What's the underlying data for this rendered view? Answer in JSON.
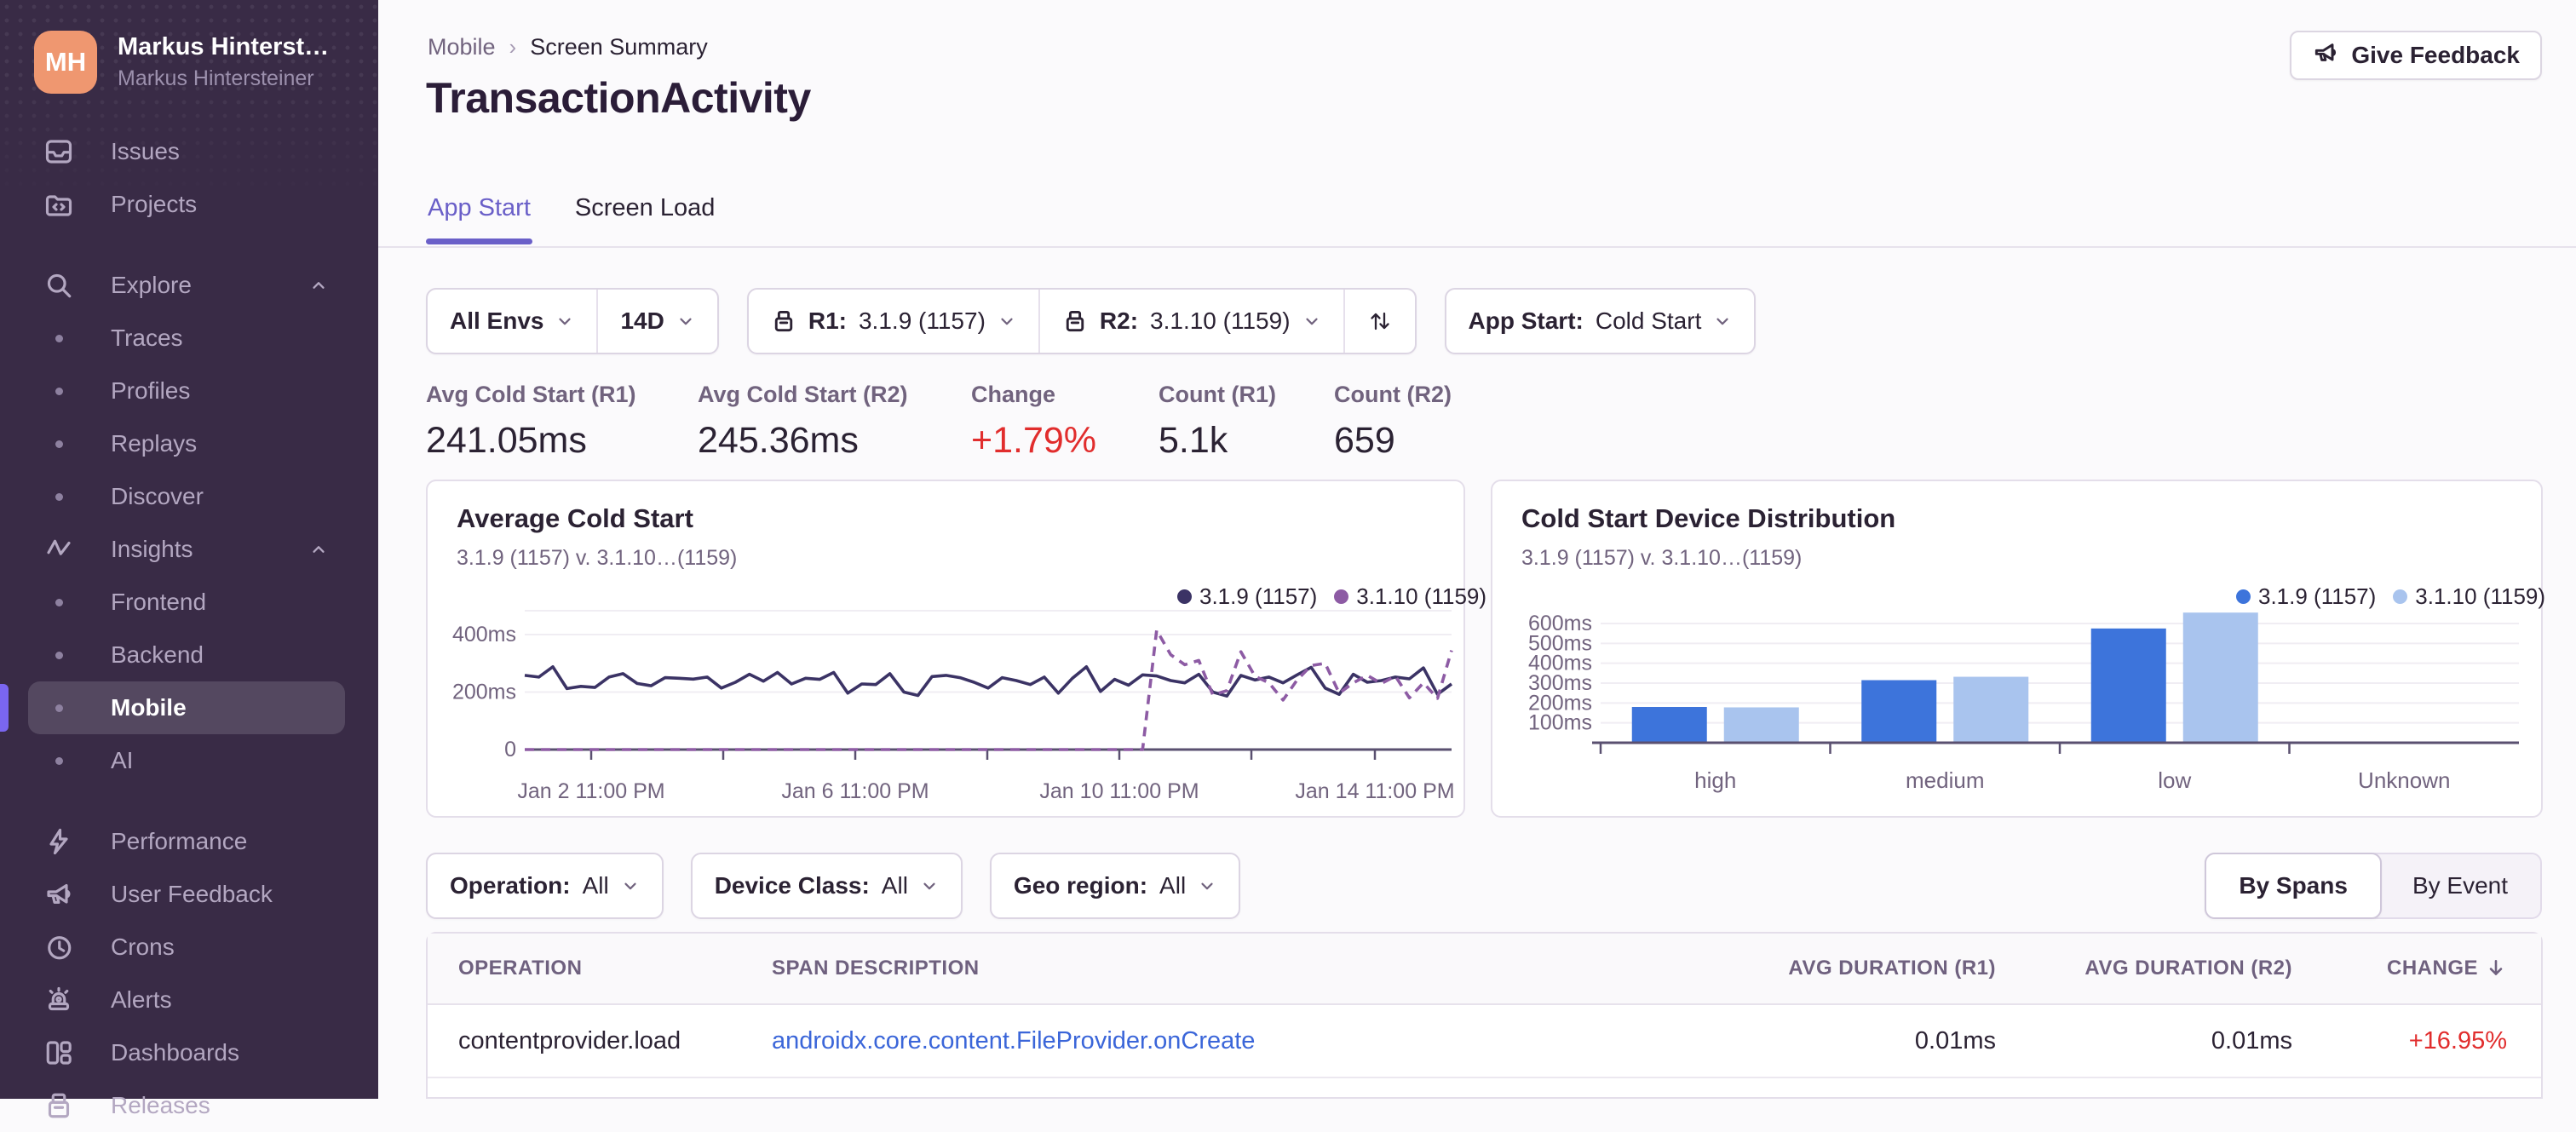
{
  "sidebar": {
    "user": {
      "initials": "MH",
      "name": "Markus Hinterst…",
      "org": "Markus Hintersteiner"
    },
    "items": [
      {
        "label": "Issues",
        "icon": "issues",
        "type": "top"
      },
      {
        "label": "Projects",
        "icon": "projects",
        "type": "top"
      },
      {
        "label": "Explore",
        "icon": "search",
        "type": "group",
        "chevron": "up",
        "gap_before": true
      },
      {
        "label": "Traces",
        "type": "sub"
      },
      {
        "label": "Profiles",
        "type": "sub"
      },
      {
        "label": "Replays",
        "type": "sub"
      },
      {
        "label": "Discover",
        "type": "sub"
      },
      {
        "label": "Insights",
        "icon": "insights",
        "type": "group",
        "chevron": "up"
      },
      {
        "label": "Frontend",
        "type": "sub"
      },
      {
        "label": "Backend",
        "type": "sub"
      },
      {
        "label": "Mobile",
        "type": "sub",
        "active": true
      },
      {
        "label": "AI",
        "type": "sub"
      },
      {
        "label": "Performance",
        "icon": "performance",
        "type": "top",
        "gap_before": true
      },
      {
        "label": "User Feedback",
        "icon": "megaphone",
        "type": "top"
      },
      {
        "label": "Crons",
        "icon": "crons",
        "type": "top"
      },
      {
        "label": "Alerts",
        "icon": "alerts",
        "type": "top"
      },
      {
        "label": "Dashboards",
        "icon": "dashboards",
        "type": "top"
      },
      {
        "label": "Releases",
        "icon": "releases",
        "type": "top"
      }
    ]
  },
  "header": {
    "breadcrumb_parent": "Mobile",
    "breadcrumb_current": "Screen Summary",
    "title": "TransactionActivity",
    "feedback_label": "Give Feedback"
  },
  "tabs": {
    "app_start": "App Start",
    "screen_load": "Screen Load"
  },
  "filters": {
    "env": "All Envs",
    "range": "14D",
    "r1_prefix": "R1:",
    "r1_value": "3.1.9 (1157)",
    "r2_prefix": "R2:",
    "r2_value": "3.1.10 (1159)",
    "app_start_prefix": "App Start:",
    "app_start_value": "Cold Start",
    "operation_prefix": "Operation:",
    "operation_value": "All",
    "device_class_prefix": "Device Class:",
    "device_class_value": "All",
    "geo_prefix": "Geo region:",
    "geo_value": "All"
  },
  "stats": [
    {
      "label": "Avg Cold Start (R1)",
      "value": "241.05ms"
    },
    {
      "label": "Avg Cold Start (R2)",
      "value": "245.36ms"
    },
    {
      "label": "Change",
      "value": "+1.79%"
    },
    {
      "label": "Count (R1)",
      "value": "5.1k"
    },
    {
      "label": "Count (R2)",
      "value": "659"
    }
  ],
  "view_toggle": {
    "by_spans": "By Spans",
    "by_event": "By Event"
  },
  "table": {
    "columns": [
      "OPERATION",
      "SPAN DESCRIPTION",
      "AVG DURATION (R1)",
      "AVG DURATION (R2)",
      "CHANGE"
    ],
    "sort_column": "CHANGE",
    "rows": [
      {
        "operation": "contentprovider.load",
        "span_description": "androidx.core.content.FileProvider.onCreate",
        "avg_r1": "0.01ms",
        "avg_r2": "0.01ms",
        "change": "+16.95%"
      }
    ]
  },
  "chart_data": [
    {
      "type": "line",
      "title": "Average Cold Start",
      "subtitle": "3.1.9 (1157) v. 3.1.10…(1159)",
      "ylabel": "ms",
      "ylim": [
        0,
        440
      ],
      "y_ticks": [
        "400ms",
        "200ms",
        "0"
      ],
      "x_ticks": [
        "Jan 2 11:00 PM",
        "Jan 6 11:00 PM",
        "Jan 10 11:00 PM",
        "Jan 14 11:00 PM"
      ],
      "legend_position": "top-right",
      "grid": "horizontal",
      "series": [
        {
          "name": "3.1.9 (1157)",
          "color": "#3B3365",
          "style": "solid",
          "values": [
            258,
            252,
            288,
            212,
            220,
            216,
            252,
            264,
            230,
            222,
            250,
            248,
            245,
            252,
            214,
            234,
            262,
            238,
            268,
            228,
            248,
            244,
            268,
            196,
            228,
            226,
            264,
            200,
            188,
            254,
            258,
            250,
            234,
            214,
            250,
            240,
            226,
            252,
            196,
            248,
            288,
            202,
            244,
            224,
            260,
            256,
            240,
            232,
            262,
            200,
            186,
            258,
            242,
            252,
            232,
            260,
            286,
            214,
            192,
            262,
            234,
            240,
            252,
            246,
            284,
            192,
            228
          ]
        },
        {
          "name": "3.1.10 (1159)",
          "color": "#8D5BA4",
          "style": "dashed",
          "values": [
            0,
            0,
            0,
            0,
            0,
            0,
            0,
            0,
            0,
            0,
            0,
            0,
            0,
            0,
            0,
            0,
            0,
            0,
            0,
            0,
            0,
            0,
            0,
            0,
            0,
            0,
            0,
            0,
            0,
            0,
            0,
            0,
            0,
            0,
            0,
            0,
            0,
            0,
            0,
            0,
            0,
            0,
            0,
            0,
            0,
            415,
            330,
            295,
            310,
            190,
            205,
            340,
            255,
            232,
            172,
            242,
            292,
            300,
            196,
            232,
            258,
            230,
            255,
            180,
            232,
            178,
            345
          ]
        }
      ]
    },
    {
      "type": "bar",
      "title": "Cold Start Device Distribution",
      "subtitle": "3.1.9 (1157) v. 3.1.10…(1159)",
      "ylabel": "ms",
      "ylim": [
        0,
        700
      ],
      "y_ticks": [
        "600ms",
        "500ms",
        "400ms",
        "300ms",
        "200ms",
        "100ms"
      ],
      "categories": [
        "high",
        "medium",
        "low",
        "Unknown"
      ],
      "legend_position": "top-right",
      "grid": "horizontal",
      "series": [
        {
          "name": "3.1.9 (1157)",
          "color": "#3D74DB",
          "values": [
            180,
            315,
            575,
            null
          ]
        },
        {
          "name": "3.1.10 (1159)",
          "color": "#A9C4EE",
          "values": [
            178,
            332,
            655,
            null
          ]
        }
      ]
    }
  ],
  "colors": {
    "sidebar_bg": "#392B46",
    "accent_purple": "#6A5FC8",
    "active_indicator": "#7A66F0",
    "avatar_orange": "#EF9770",
    "negative_red": "#E12D2D",
    "link_blue": "#3B66D9",
    "bar_blue_r1": "#3D74DB",
    "bar_blue_r2": "#A9C4EE",
    "line_navy_r1": "#3B3365",
    "line_purple_r2": "#8D5BA4"
  }
}
